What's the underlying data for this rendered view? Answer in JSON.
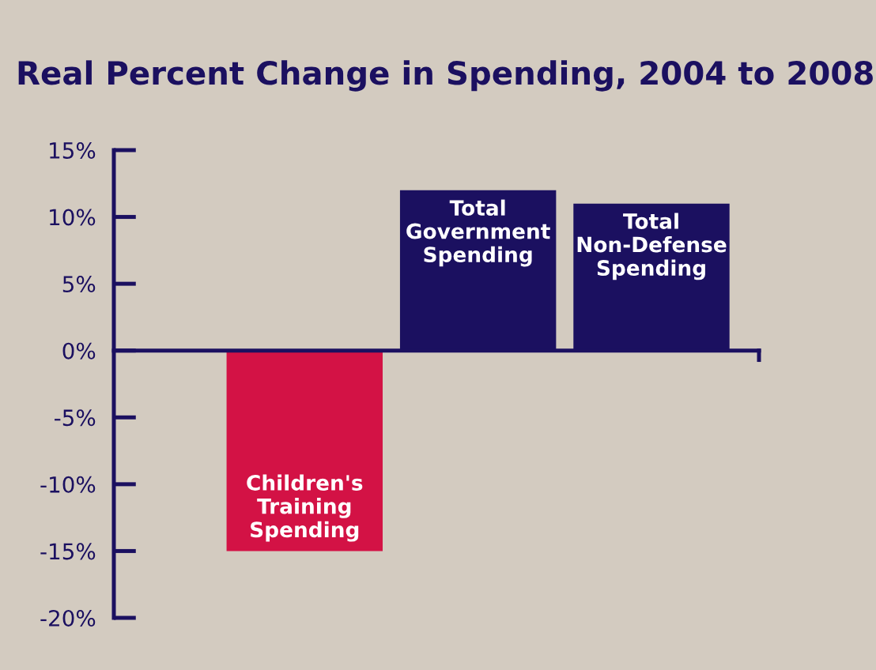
{
  "chart_data": {
    "type": "bar",
    "title": "Real Percent Change in Spending, 2004 to 2008",
    "categories": [
      "Children's Training Spending",
      "Total Government Spending",
      "Total Non-Defense Spending"
    ],
    "values": [
      -15,
      12,
      11
    ],
    "colors": [
      "#d31245",
      "#1b1060",
      "#1b1060"
    ],
    "ylim": [
      -20,
      15
    ],
    "yticks": [
      {
        "value": 15,
        "label": "15%"
      },
      {
        "value": 10,
        "label": "10%"
      },
      {
        "value": 5,
        "label": "5%"
      },
      {
        "value": 0,
        "label": "0%"
      },
      {
        "value": -5,
        "label": "-5%"
      },
      {
        "value": -10,
        "label": "-10%"
      },
      {
        "value": -15,
        "label": "-15%"
      },
      {
        "value": -20,
        "label": "-20%"
      }
    ],
    "grid": false
  }
}
